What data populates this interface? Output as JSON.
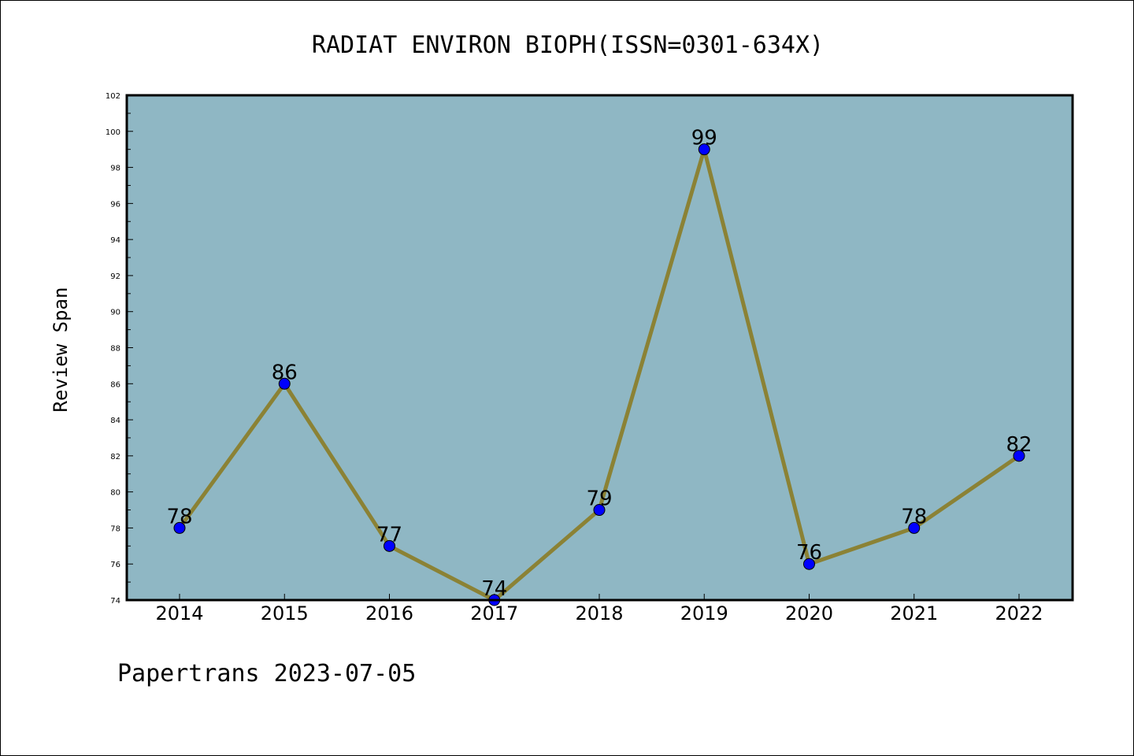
{
  "chart_data": {
    "type": "line",
    "title": "RADIAT ENVIRON BIOPH(ISSN=0301-634X)",
    "ylabel": "Review Span",
    "xlabel": "",
    "categories": [
      "2014",
      "2015",
      "2016",
      "2017",
      "2018",
      "2019",
      "2020",
      "2021",
      "2022"
    ],
    "values": [
      78,
      86,
      77,
      74,
      79,
      99,
      76,
      78,
      82
    ],
    "ylim": [
      74,
      102
    ],
    "yticks": [
      74,
      76,
      78,
      80,
      82,
      84,
      86,
      88,
      90,
      92,
      94,
      96,
      98,
      100,
      102
    ],
    "grid": false,
    "legend": "none",
    "colors": {
      "plot_background": "#8fb7c4",
      "line": "#8b8235",
      "marker": "#0000ff"
    }
  },
  "footer": "Papertrans 2023-07-05"
}
